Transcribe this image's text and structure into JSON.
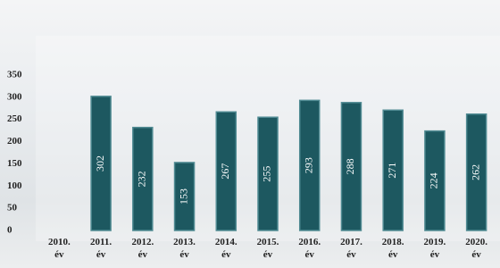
{
  "chart_data": {
    "type": "bar",
    "categories": [
      "2010. év",
      "2011. év",
      "2012. év",
      "2013. év",
      "2014. év",
      "2015. év",
      "2016. év",
      "2017. év",
      "2018. év",
      "2019. év",
      "2020. év"
    ],
    "values": [
      null,
      302,
      232,
      153,
      267,
      255,
      293,
      288,
      271,
      224,
      262
    ],
    "color": "#1d5860",
    "ylim": [
      0,
      350
    ],
    "yticks": [
      0,
      50,
      100,
      150,
      200,
      250,
      300,
      350
    ],
    "grid": false
  }
}
